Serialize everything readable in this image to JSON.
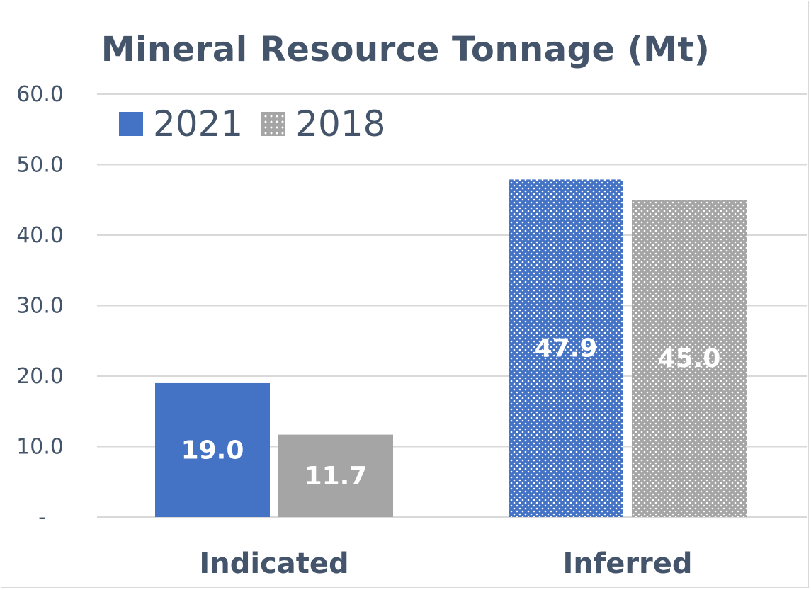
{
  "chart_data": {
    "type": "bar",
    "title": "Mineral Resource Tonnage (Mt)",
    "categories": [
      "Indicated",
      "Inferred"
    ],
    "series": [
      {
        "name": "2021",
        "values": [
          19.0,
          47.9
        ],
        "labels": [
          "19.0",
          "47.9"
        ],
        "color": "#4472c4",
        "patterned": [
          false,
          true
        ]
      },
      {
        "name": "2018",
        "values": [
          11.7,
          45.0
        ],
        "labels": [
          "11.7",
          "45.0"
        ],
        "color": "#a5a5a5",
        "patterned": [
          false,
          true
        ]
      }
    ],
    "ylim": [
      0,
      60
    ],
    "yticks": [
      0,
      10,
      20,
      30,
      40,
      50,
      60
    ],
    "ytick_labels": [
      "-",
      "10.0",
      "20.0",
      "30.0",
      "40.0",
      "50.0",
      "60.0"
    ],
    "xlabel": "",
    "ylabel": "",
    "grid": true,
    "legend_position": "top-left",
    "text_color": "#44546a",
    "grid_color": "#d9d9d9"
  }
}
